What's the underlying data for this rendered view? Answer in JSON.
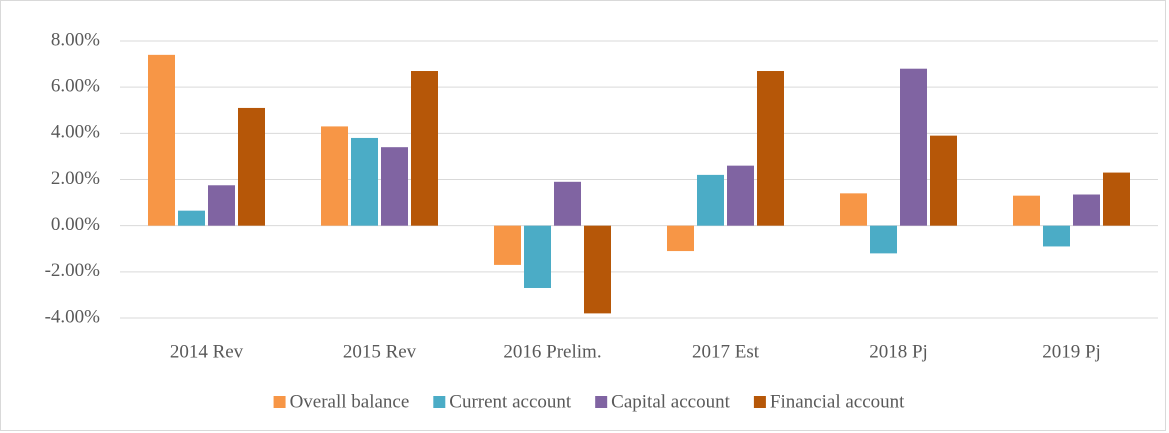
{
  "chart_data": {
    "type": "bar",
    "categories": [
      "2014 Rev",
      "2015 Rev",
      "2016 Prelim.",
      "2017 Est",
      "2018 Pj",
      "2019 Pj"
    ],
    "series": [
      {
        "name": "Overall balance",
        "color": "#f79646",
        "values": [
          7.4,
          4.3,
          -1.7,
          -1.1,
          1.4,
          1.3
        ]
      },
      {
        "name": "Current account",
        "color": "#4bacc6",
        "values": [
          0.65,
          3.8,
          -2.7,
          2.2,
          -1.2,
          -0.9
        ]
      },
      {
        "name": "Capital account",
        "color": "#8064a2",
        "values": [
          1.75,
          3.4,
          1.9,
          2.6,
          6.8,
          1.35
        ]
      },
      {
        "name": "Financial account",
        "color": "#b65708",
        "values": [
          5.1,
          6.7,
          -3.8,
          6.7,
          3.9,
          2.3
        ]
      }
    ],
    "ylim": [
      -4,
      8
    ],
    "yticks": [
      {
        "value": -4,
        "label": "-4.00%"
      },
      {
        "value": -2,
        "label": "-2.00%"
      },
      {
        "value": 0,
        "label": "0.00%"
      },
      {
        "value": 2,
        "label": "2.00%"
      },
      {
        "value": 4,
        "label": "4.00%"
      },
      {
        "value": 6,
        "label": "6.00%"
      },
      {
        "value": 8,
        "label": "8.00%"
      }
    ],
    "grid": true,
    "legend": "bottom"
  }
}
